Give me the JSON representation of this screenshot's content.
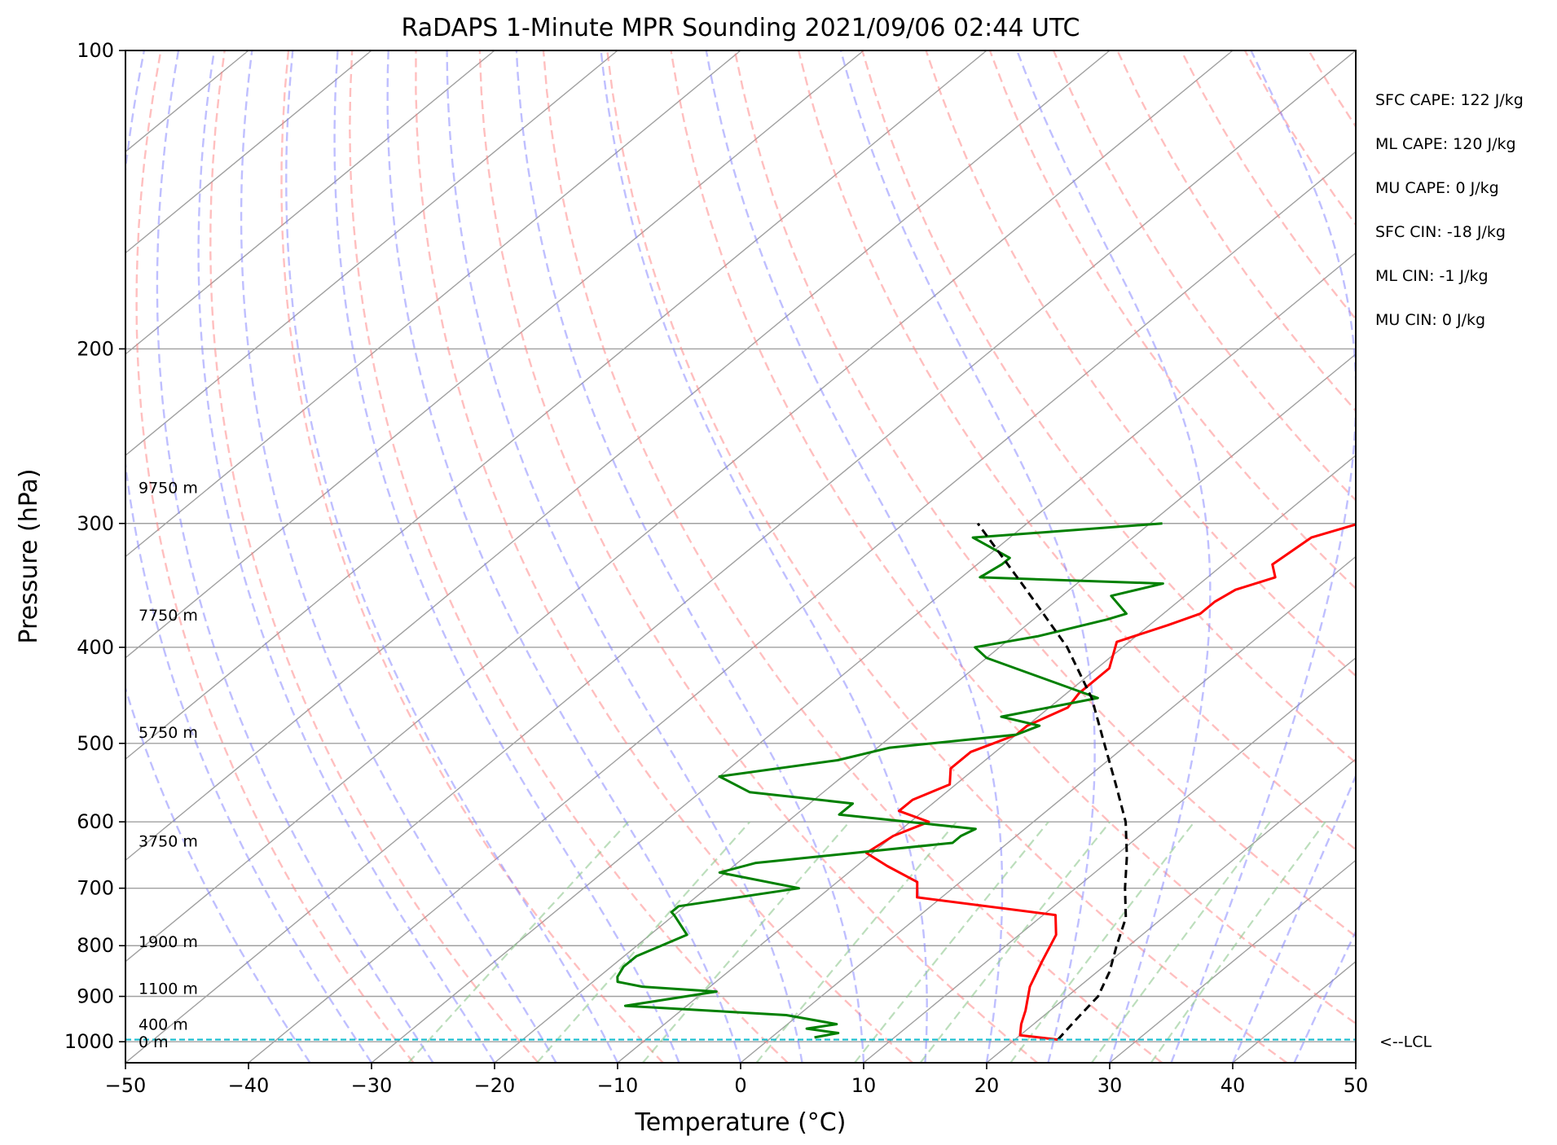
{
  "chart_data": {
    "type": "line",
    "title": "RaDAPS 1-Minute MPR Sounding 2021/09/06 02:44 UTC",
    "xlabel": "Temperature (°C)",
    "ylabel": "Pressure (hPa)",
    "xlim": [
      -50,
      50
    ],
    "ylim": [
      1050,
      100
    ],
    "y_scale": "log",
    "skew": true,
    "grid": true,
    "x_ticks": [
      -50,
      -40,
      -30,
      -20,
      -10,
      0,
      10,
      20,
      30,
      40,
      50
    ],
    "x_tick_labels": [
      "−50",
      "−40",
      "−30",
      "−20",
      "−10",
      "0",
      "10",
      "20",
      "30",
      "40",
      "50"
    ],
    "y_ticks": [
      100,
      200,
      300,
      400,
      500,
      600,
      700,
      800,
      900,
      1000
    ],
    "y_tick_labels": [
      "100",
      "200",
      "300",
      "400",
      "500",
      "600",
      "700",
      "800",
      "900",
      "1000"
    ],
    "colors": {
      "temperature": "#ff0000",
      "dewpoint": "#008000",
      "parcel": "#000000",
      "dry_adiabat": "#ff8080",
      "moist_adiabat": "#8080ff",
      "mixing_ratio": "#90c890",
      "isotherm": "#a0a0a0",
      "lcl": "#17becf"
    },
    "series": [
      {
        "key": "temperature",
        "pressure": [
          300,
          310,
          330,
          340,
          350,
          360,
          370,
          380,
          395,
          420,
          445,
          460,
          480,
          490,
          500,
          510,
          530,
          550,
          570,
          585,
          600,
          620,
          645,
          665,
          690,
          715,
          745,
          780,
          830,
          880,
          930,
          960,
          985,
          995
        ],
        "temperature": [
          -3.0,
          -5.5,
          -6.0,
          -4.5,
          -6.5,
          -7.0,
          -7.0,
          -8.5,
          -11.0,
          -9.0,
          -9.0,
          -8.5,
          -10.0,
          -10.0,
          -11.0,
          -12.0,
          -12.0,
          -10.5,
          -12.0,
          -12.0,
          -8.5,
          -10.0,
          -10.5,
          -7.5,
          -3.5,
          -2.0,
          11.0,
          13.0,
          14.5,
          16.0,
          18.0,
          19.0,
          20.0,
          23.5
        ]
      },
      {
        "key": "dewpoint",
        "pressure": [
          300,
          310,
          325,
          330,
          340,
          345,
          355,
          370,
          375,
          390,
          400,
          410,
          450,
          470,
          480,
          490,
          505,
          520,
          540,
          560,
          575,
          590,
          610,
          620,
          630,
          660,
          675,
          700,
          730,
          740,
          745,
          780,
          820,
          840,
          860,
          870,
          880,
          890,
          920,
          940,
          960,
          970,
          980,
          990
        ],
        "dewpoint": [
          -19.0,
          -33.0,
          -28.0,
          -28.0,
          -28.5,
          -13.0,
          -16.0,
          -13.0,
          -14.0,
          -18.0,
          -22.0,
          -20.0,
          -7.0,
          -13.0,
          -9.0,
          -10.0,
          -19.0,
          -22.0,
          -30.0,
          -26.0,
          -16.5,
          -16.5,
          -4.0,
          -4.5,
          -4.5,
          -18.5,
          -20.5,
          -12.5,
          -20.5,
          -20.5,
          -20.0,
          -17.0,
          -19.0,
          -19.0,
          -18.5,
          -18.0,
          -15.5,
          -9.0,
          -15.0,
          -1.0,
          4.0,
          2.0,
          5.0,
          3.5
        ]
      },
      {
        "key": "parcel",
        "pressure": [
          995,
          950,
          900,
          850,
          800,
          750,
          700,
          650,
          600,
          550,
          500,
          450,
          400,
          350,
          300
        ],
        "temperature": [
          23.5,
          23.0,
          22.5,
          21.0,
          19.0,
          17.0,
          14.0,
          11.0,
          7.5,
          3.0,
          -2.0,
          -7.5,
          -14.5,
          -23.5,
          -34.0
        ]
      }
    ],
    "lcl_pressure": 995,
    "lcl_label": "<--LCL",
    "height_labels": [
      {
        "text": "9750 m",
        "pressure": 276
      },
      {
        "text": "7750 m",
        "pressure": 371
      },
      {
        "text": "5750 m",
        "pressure": 487
      },
      {
        "text": "3750 m",
        "pressure": 627
      },
      {
        "text": "1900 m",
        "pressure": 792
      },
      {
        "text": "1100 m",
        "pressure": 883
      },
      {
        "text": "400 m",
        "pressure": 960
      },
      {
        "text": "0 m",
        "pressure": 1000
      }
    ],
    "annotations": [
      "SFC CAPE: 122 J/kg",
      "ML CAPE: 120 J/kg",
      "MU CAPE: 0 J/kg",
      "SFC CIN: -18 J/kg",
      "ML CIN: -1 J/kg",
      "MU CIN: 0 J/kg"
    ]
  }
}
